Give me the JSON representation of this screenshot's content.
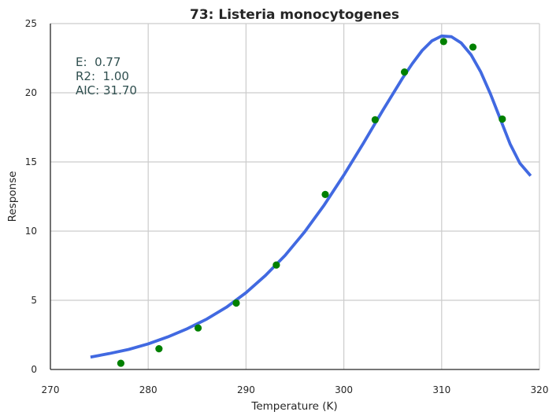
{
  "chart_data": {
    "type": "scatter",
    "title": "73: Listeria monocytogenes",
    "xlabel": "Temperature (K)",
    "ylabel": "Response",
    "xlim": [
      270,
      320
    ],
    "ylim": [
      0,
      25
    ],
    "xticks": [
      270,
      280,
      290,
      300,
      310,
      320
    ],
    "yticks": [
      0,
      5,
      10,
      15,
      20,
      25
    ],
    "grid": true,
    "annotations": [
      "E:  0.77",
      "R2:  1.00",
      "AIC: 31.70"
    ],
    "series": [
      {
        "kind": "points",
        "color": "#008000",
        "x": [
          277.2,
          281.1,
          285.1,
          289.0,
          293.1,
          298.1,
          303.2,
          306.2,
          310.2,
          313.2,
          316.2
        ],
        "y": [
          0.45,
          1.5,
          3.0,
          4.8,
          7.55,
          12.65,
          18.05,
          21.5,
          23.7,
          23.3,
          18.1
        ]
      },
      {
        "kind": "line",
        "color": "#4169e1",
        "x": [
          274.1,
          276,
          278,
          280,
          282,
          284,
          286,
          288,
          290,
          292,
          294,
          296,
          298,
          300,
          302,
          304,
          306,
          307,
          308,
          309,
          310,
          311,
          312,
          313,
          314,
          315,
          316,
          317,
          318,
          319.1
        ],
        "y": [
          0.9,
          1.15,
          1.45,
          1.85,
          2.35,
          2.95,
          3.65,
          4.5,
          5.55,
          6.8,
          8.25,
          9.95,
          11.9,
          14.05,
          16.35,
          18.75,
          21.05,
          22.1,
          23.05,
          23.75,
          24.1,
          24.05,
          23.6,
          22.75,
          21.5,
          19.9,
          18.1,
          16.3,
          14.9,
          14.0
        ]
      }
    ]
  }
}
